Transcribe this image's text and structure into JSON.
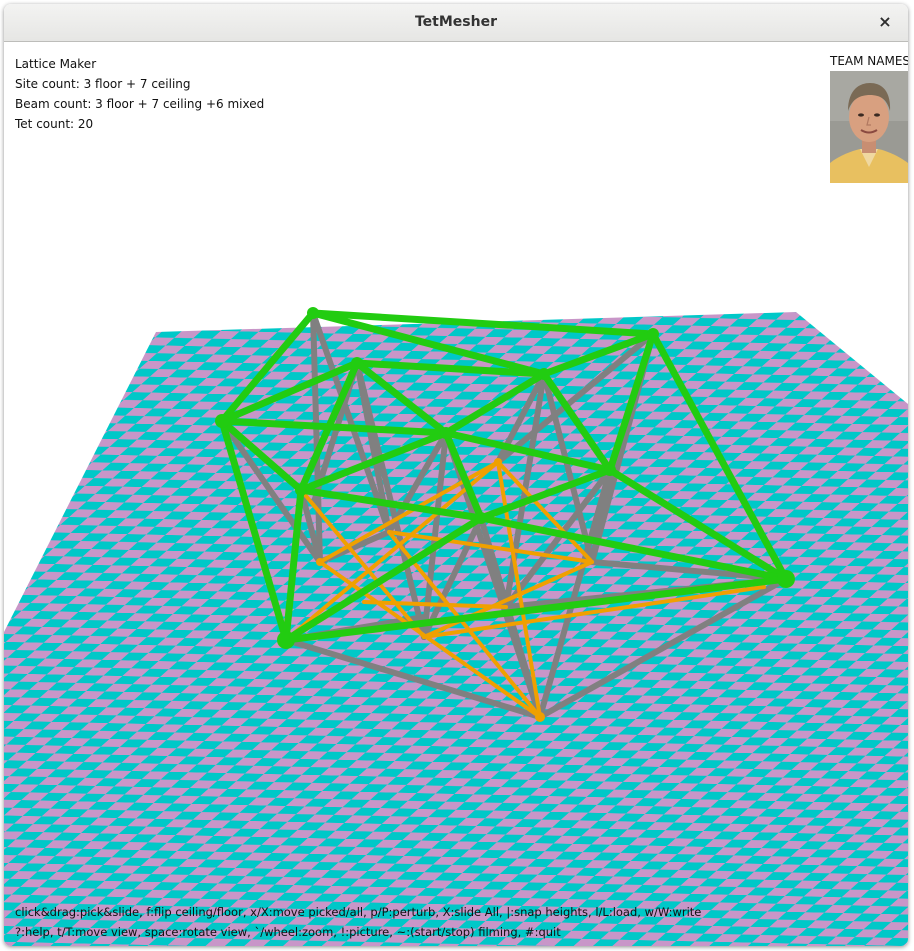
{
  "window": {
    "title": "TetMesher",
    "close_glyph": "×"
  },
  "info": {
    "app_name": "Lattice Maker",
    "site_count": "Site count: 3 floor + 7 ceiling",
    "beam_count": "Beam count: 3 floor + 7 ceiling +6 mixed",
    "tet_count": "Tet count: 20"
  },
  "team": {
    "label": "TEAM NAMES"
  },
  "help": {
    "line1": "click&drag:pick&slide, f:flip ceiling/floor, x/X:move picked/all, p/P:perturb, X:slide All, |:snap heights, l/L:load, w/W:write",
    "line2": "?:help, t/T:move view, space:rotate view, `/wheel:zoom, !:picture, ~:(start/stop) filming,  #:quit"
  },
  "colors": {
    "floor_cyan": "#00c8c8",
    "floor_pink": "#c896c8",
    "ceiling_beam": "#22cc11",
    "floor_beam": "#f0a000",
    "mixed_beam": "#808080"
  },
  "icons": {
    "close": "close-icon",
    "portrait": "team-photo"
  }
}
